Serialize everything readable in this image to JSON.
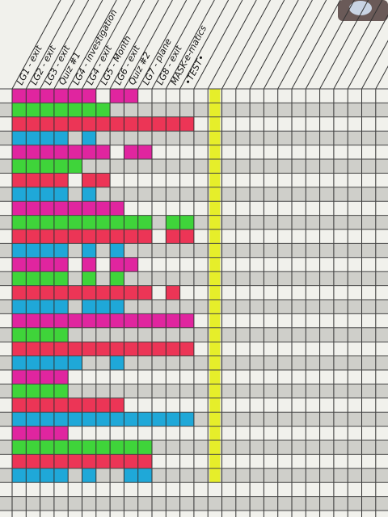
{
  "headers": [
    "LG1 - exit",
    "LG2 - exit",
    "LG3 - exit",
    "Quiz #1",
    "LG4 - investigation",
    "LG4 - exit",
    "LG5 - Month",
    "LG6 - exit",
    "Quiz #2",
    "LG7 - plane",
    "LG8 - exit",
    "MASK-e-matics",
    "•TEST•"
  ],
  "palette": {
    "m": "#e0259f",
    "g": "#3fd43a",
    "r": "#ec3556",
    "b": "#1fa8d8",
    "y": "#e6ee2a"
  },
  "highlight_column": 14,
  "rows": [
    {
      "color": "m",
      "cells": [
        0,
        1,
        2,
        3,
        4,
        5,
        7,
        8
      ]
    },
    {
      "color": "g",
      "cells": [
        0,
        1,
        2,
        3,
        4,
        5,
        6
      ]
    },
    {
      "color": "r",
      "cells": [
        0,
        1,
        2,
        3,
        4,
        5,
        6,
        7,
        8,
        9,
        10,
        11,
        12
      ]
    },
    {
      "color": "b",
      "cells": [
        0,
        1,
        2,
        3,
        5
      ]
    },
    {
      "color": "m",
      "cells": [
        0,
        1,
        2,
        3,
        4,
        5,
        6,
        8,
        9
      ]
    },
    {
      "color": "g",
      "cells": [
        0,
        1,
        2,
        3,
        4
      ]
    },
    {
      "color": "r",
      "cells": [
        0,
        1,
        2,
        3,
        5,
        6
      ]
    },
    {
      "color": "b",
      "cells": [
        0,
        1,
        2,
        3,
        5
      ]
    },
    {
      "color": "m",
      "cells": [
        0,
        1,
        2,
        3,
        4,
        5,
        6,
        7
      ]
    },
    {
      "color": "g",
      "cells": [
        0,
        1,
        2,
        3,
        4,
        5,
        6,
        7,
        8,
        9,
        11,
        12
      ]
    },
    {
      "color": "r",
      "cells": [
        0,
        1,
        2,
        3,
        4,
        5,
        6,
        7,
        8,
        9,
        11,
        12
      ]
    },
    {
      "color": "b",
      "cells": [
        0,
        1,
        2,
        3,
        5,
        7
      ]
    },
    {
      "color": "m",
      "cells": [
        0,
        1,
        2,
        3,
        5,
        7,
        8
      ]
    },
    {
      "color": "g",
      "cells": [
        0,
        1,
        2,
        3,
        5,
        7
      ]
    },
    {
      "color": "r",
      "cells": [
        0,
        1,
        2,
        3,
        4,
        5,
        6,
        7,
        8,
        9,
        11
      ]
    },
    {
      "color": "b",
      "cells": [
        0,
        1,
        2,
        3,
        5,
        6,
        7
      ]
    },
    {
      "color": "m",
      "cells": [
        0,
        1,
        2,
        3,
        4,
        5,
        6,
        7,
        8,
        9,
        10,
        11,
        12
      ]
    },
    {
      "color": "g",
      "cells": [
        0,
        1,
        2,
        3
      ]
    },
    {
      "color": "r",
      "cells": [
        0,
        1,
        2,
        3,
        4,
        5,
        6,
        7,
        8,
        9,
        10,
        11,
        12
      ]
    },
    {
      "color": "b",
      "cells": [
        0,
        1,
        2,
        3,
        4,
        7
      ]
    },
    {
      "color": "m",
      "cells": [
        0,
        1,
        2,
        3
      ]
    },
    {
      "color": "g",
      "cells": [
        0,
        1,
        2,
        3
      ]
    },
    {
      "color": "r",
      "cells": [
        0,
        1,
        2,
        3,
        4,
        5,
        6,
        7
      ]
    },
    {
      "color": "b",
      "cells": [
        0,
        1,
        2,
        3,
        4,
        5,
        6,
        7,
        8,
        9,
        10,
        11,
        12
      ]
    },
    {
      "color": "m",
      "cells": [
        0,
        1,
        2,
        3
      ]
    },
    {
      "color": "g",
      "cells": [
        0,
        1,
        2,
        3,
        4,
        5,
        6,
        7,
        8,
        9
      ]
    },
    {
      "color": "r",
      "cells": [
        0,
        1,
        2,
        3,
        4,
        5,
        6,
        7,
        8,
        9
      ]
    },
    {
      "color": "b",
      "cells": [
        0,
        1,
        2,
        3,
        5,
        8,
        9
      ]
    }
  ]
}
